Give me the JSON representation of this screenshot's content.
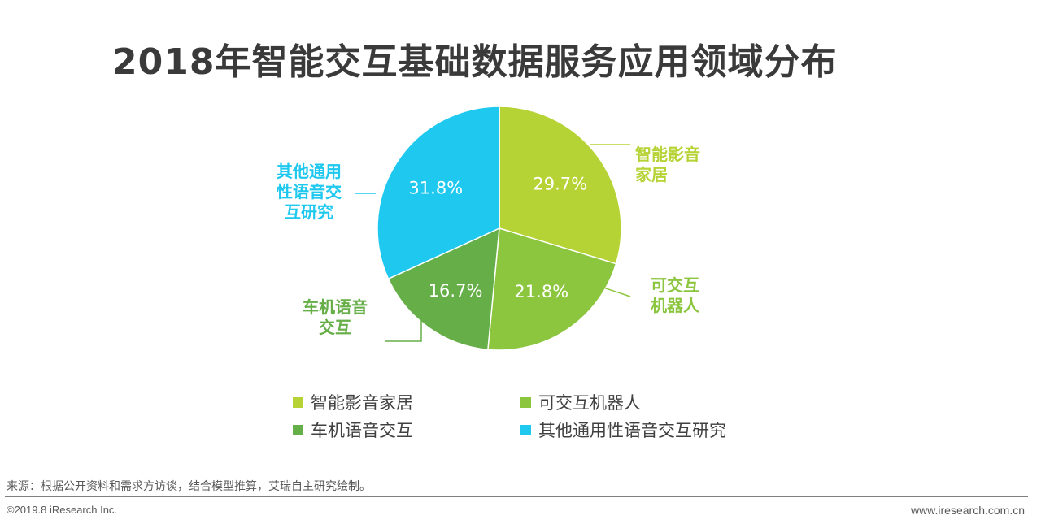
{
  "title": "2018年智能交互基础数据服务应用领域分布",
  "colors": {
    "smart_home": "#b5d334",
    "robot": "#8cc63f",
    "car_voice": "#66ae48",
    "general_voice": "#1ec8ef",
    "label_text": "#ffffff"
  },
  "chart_data": {
    "type": "pie",
    "title": "2018年智能交互基础数据服务应用领域分布",
    "slices": [
      {
        "category": "智能影音家居",
        "value": 29.7,
        "label": "29.7%",
        "callout_lines": [
          "智能影音",
          "家居"
        ],
        "color": "#b5d334"
      },
      {
        "category": "可交互机器人",
        "value": 21.8,
        "label": "21.8%",
        "callout_lines": [
          "可交互",
          "机器人"
        ],
        "color": "#8cc63f"
      },
      {
        "category": "车机语音交互",
        "value": 16.7,
        "label": "16.7%",
        "callout_lines": [
          "车机语音",
          "交互"
        ],
        "color": "#66ae48"
      },
      {
        "category": "其他通用性语音交互研究",
        "value": 31.8,
        "label": "31.8%",
        "callout_lines": [
          "其他通用",
          "性语音交",
          "互研究"
        ],
        "color": "#1ec8ef"
      }
    ],
    "legend": [
      "智能影音家居",
      "可交互机器人",
      "车机语音交互",
      "其他通用性语音交互研究"
    ],
    "legend_placement": "bottom"
  },
  "footer": {
    "source": "来源：根据公开资料和需求方访谈，结合模型推算，艾瑞自主研究绘制。",
    "copyright": "©2019.8 iResearch Inc.",
    "website": "www.iresearch.com.cn"
  }
}
